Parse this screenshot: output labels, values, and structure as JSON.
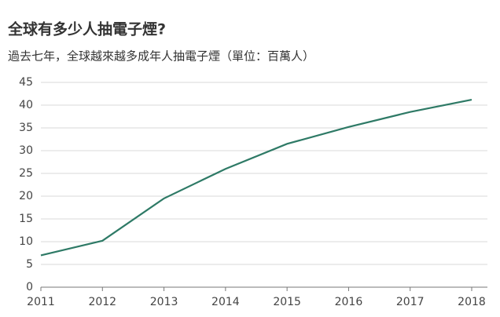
{
  "chart_data": {
    "type": "line",
    "title": "全球有多少人抽電子煙?",
    "subtitle": "過去七年，全球越來越多成年人抽電子煙（單位：百萬人）",
    "x": [
      2011,
      2012,
      2013,
      2014,
      2015,
      2016,
      2017,
      2018
    ],
    "values": [
      7,
      10.2,
      19.5,
      26,
      31.5,
      35.2,
      38.5,
      41.2
    ],
    "color": "#2e7a66",
    "xlim": [
      2011,
      2018
    ],
    "xticks": [
      2011,
      2012,
      2013,
      2014,
      2015,
      2016,
      2017,
      2018
    ],
    "ylim": [
      0,
      45
    ],
    "yticks": [
      0,
      5,
      10,
      15,
      20,
      25,
      30,
      35,
      40,
      45
    ],
    "grid": true
  }
}
